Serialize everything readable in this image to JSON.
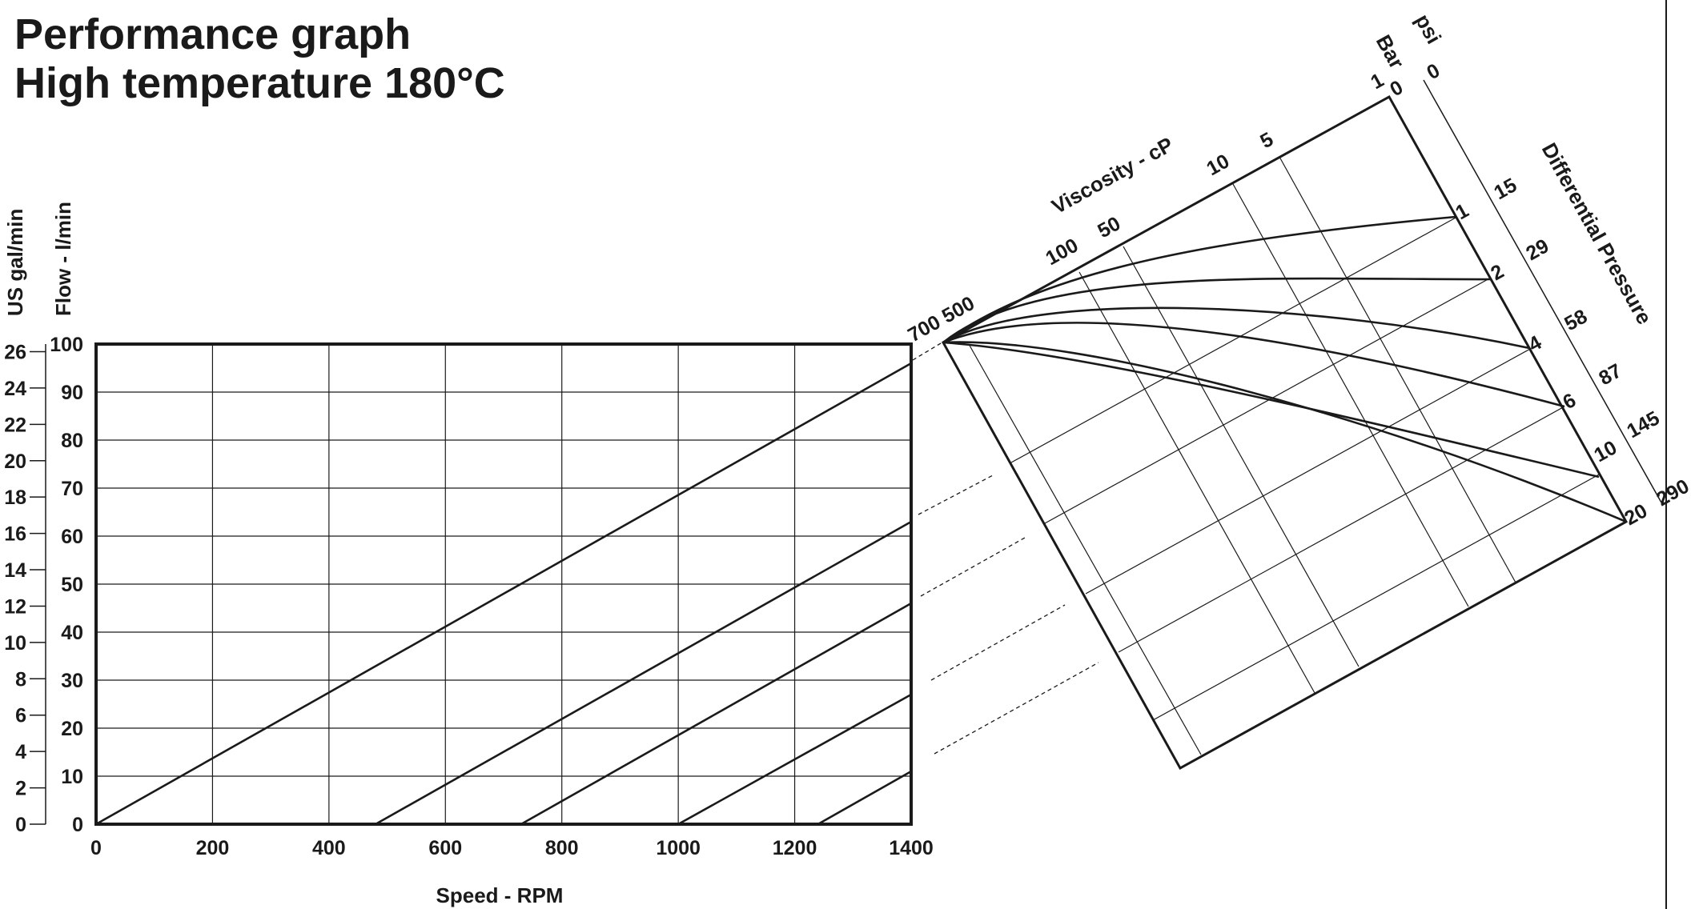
{
  "chart_data": {
    "type": "line",
    "title": [
      "Performance graph",
      "High temperature 180°C"
    ],
    "xlabel": "Speed - RPM",
    "ylabel_left_outer": "US gal/min",
    "ylabel_left_inner": "Flow - l/min",
    "xlim": [
      0,
      1400
    ],
    "ylim": [
      0,
      100
    ],
    "x_ticks": [
      "0",
      "200",
      "400",
      "600",
      "800",
      "1000",
      "1200",
      "1400"
    ],
    "y_ticks_lmin": [
      "0",
      "10",
      "20",
      "30",
      "40",
      "50",
      "60",
      "70",
      "80",
      "90",
      "100"
    ],
    "y_ticks_usgal": [
      "0",
      "2",
      "4",
      "6",
      "8",
      "10",
      "12",
      "14",
      "16",
      "18",
      "20",
      "22",
      "24",
      "26"
    ],
    "grid": true,
    "speed_flow_lines": [
      {
        "x": [
          0,
          1400
        ],
        "y": [
          0,
          96
        ]
      },
      {
        "x": [
          480,
          1400
        ],
        "y": [
          0,
          63
        ]
      },
      {
        "x": [
          730,
          1400
        ],
        "y": [
          0,
          46
        ]
      },
      {
        "x": [
          1000,
          1400
        ],
        "y": [
          0,
          27
        ]
      },
      {
        "x": [
          1240,
          1400
        ],
        "y": [
          0,
          11
        ]
      }
    ],
    "nomogram": {
      "viscosity_label": "Viscosity - cP",
      "viscosity_ticks": [
        "700 500",
        "100",
        "50",
        "10",
        "5",
        "1"
      ],
      "pressure_label": "Differential Pressure",
      "bar_label": "Bar",
      "psi_label": "psi",
      "bar_ticks": [
        "0",
        "1",
        "2",
        "4",
        "6",
        "10",
        "20"
      ],
      "psi_ticks": [
        "0",
        "15",
        "29",
        "58",
        "87",
        "145",
        "290"
      ]
    }
  }
}
